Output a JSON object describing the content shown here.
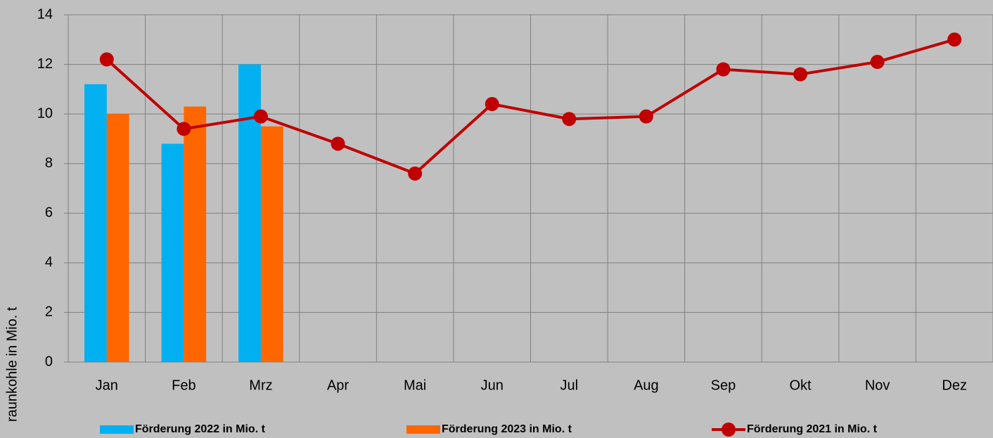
{
  "chart_data": {
    "type": "bar-line",
    "y_label": "raunkohle in Mio. t",
    "categories": [
      "Jan",
      "Feb",
      "Mrz",
      "Apr",
      "Mai",
      "Jun",
      "Jul",
      "Aug",
      "Sep",
      "Okt",
      "Nov",
      "Dez"
    ],
    "series": [
      {
        "name": "Förderung 2022 in Mio. t",
        "type": "bar",
        "color": "#00b0f0",
        "values": [
          11.2,
          8.8,
          12.0,
          null,
          null,
          null,
          null,
          null,
          null,
          null,
          null,
          null
        ]
      },
      {
        "name": "Förderung 2023 in Mio. t",
        "type": "bar",
        "color": "#ff6600",
        "values": [
          10.0,
          10.3,
          9.5,
          null,
          null,
          null,
          null,
          null,
          null,
          null,
          null,
          null
        ]
      },
      {
        "name": "Förderung 2021 in Mio. t",
        "type": "line",
        "color": "#c00000",
        "values": [
          12.2,
          9.4,
          9.9,
          8.8,
          7.6,
          10.4,
          9.8,
          9.9,
          11.8,
          11.6,
          12.1,
          13.0
        ]
      }
    ],
    "ylim": [
      0,
      14
    ],
    "yticks": [
      0,
      2,
      4,
      6,
      8,
      10,
      12,
      14
    ],
    "grid": true,
    "legend": "bottom"
  }
}
